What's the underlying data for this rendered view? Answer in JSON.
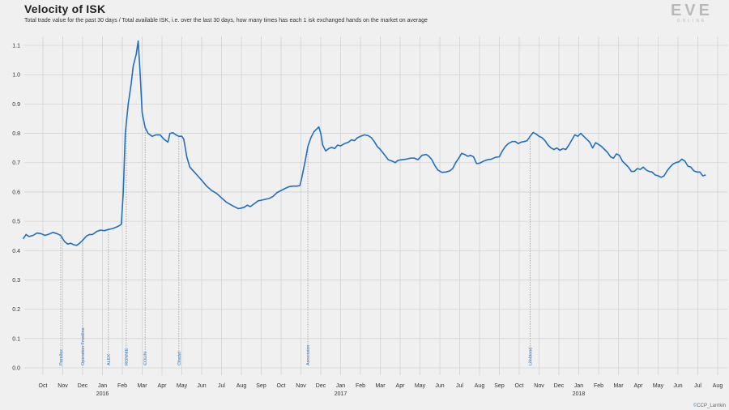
{
  "header": {
    "title": "Velocity of ISK",
    "subtitle": "Total trade value for the past 30 days / Total available ISK, i.e. over the last 30 days, how many times has each 1 isk exchanged hands on the market on average"
  },
  "logo": {
    "text": "EVE",
    "subtext": "ONLINE"
  },
  "credit": {
    "prefix": "©",
    "text": "CCP_Larrikin"
  },
  "colors": {
    "line": "#1f6fc2",
    "grid": "#d3d3d3",
    "axis_text": "#333333",
    "annotation_text": "#3f7fc4",
    "annotation_line": "#9a9a9a",
    "background": "#f0f0f0"
  },
  "chart_data": {
    "type": "line",
    "title": "Velocity of ISK",
    "ylim": [
      0,
      1.15
    ],
    "yticks": [
      0.0,
      0.1,
      0.2,
      0.3,
      0.4,
      0.5,
      0.6,
      0.7,
      0.8,
      0.9,
      1.0,
      1.1
    ],
    "ytick_labels": [
      "0.0",
      "0.1",
      "0.2",
      "0.3",
      "0.4",
      "0.5",
      "0.6",
      "0.7",
      "0.8",
      "0.9",
      "1.0",
      "1.1"
    ],
    "x_unit": "months since Oct 2015 (0 = Oct 2015)",
    "xlim": [
      -1,
      35.9
    ],
    "xticks": [
      {
        "x": 0,
        "label": "Oct"
      },
      {
        "x": 1,
        "label": "Nov"
      },
      {
        "x": 2,
        "label": "Dec"
      },
      {
        "x": 3,
        "label": "Jan",
        "year": "2016"
      },
      {
        "x": 4,
        "label": "Feb"
      },
      {
        "x": 5,
        "label": "Mar"
      },
      {
        "x": 6,
        "label": "Apr"
      },
      {
        "x": 7,
        "label": "May"
      },
      {
        "x": 8,
        "label": "Jun"
      },
      {
        "x": 9,
        "label": "Jul"
      },
      {
        "x": 10,
        "label": "Aug"
      },
      {
        "x": 11,
        "label": "Sep"
      },
      {
        "x": 12,
        "label": "Oct"
      },
      {
        "x": 13,
        "label": "Nov"
      },
      {
        "x": 14,
        "label": "Dec"
      },
      {
        "x": 15,
        "label": "Jan",
        "year": "2017"
      },
      {
        "x": 16,
        "label": "Feb"
      },
      {
        "x": 17,
        "label": "Mar"
      },
      {
        "x": 18,
        "label": "Apr"
      },
      {
        "x": 19,
        "label": "May"
      },
      {
        "x": 20,
        "label": "Jun"
      },
      {
        "x": 21,
        "label": "Jul"
      },
      {
        "x": 22,
        "label": "Aug"
      },
      {
        "x": 23,
        "label": "Sep"
      },
      {
        "x": 24,
        "label": "Oct"
      },
      {
        "x": 25,
        "label": "Nov"
      },
      {
        "x": 26,
        "label": "Dec"
      },
      {
        "x": 27,
        "label": "Jan",
        "year": "2018"
      },
      {
        "x": 28,
        "label": "Feb"
      },
      {
        "x": 29,
        "label": "Mar"
      },
      {
        "x": 30,
        "label": "Apr"
      },
      {
        "x": 31,
        "label": "May"
      },
      {
        "x": 32,
        "label": "Jun"
      },
      {
        "x": 33,
        "label": "Jul"
      },
      {
        "x": 34,
        "label": "Aug"
      }
    ],
    "grid": true,
    "series": [
      {
        "values": [
          [
            -1.0,
            0.44
          ],
          [
            -0.85,
            0.455
          ],
          [
            -0.7,
            0.448
          ],
          [
            -0.5,
            0.452
          ],
          [
            -0.3,
            0.46
          ],
          [
            -0.1,
            0.458
          ],
          [
            0.1,
            0.452
          ],
          [
            0.3,
            0.456
          ],
          [
            0.5,
            0.462
          ],
          [
            0.7,
            0.458
          ],
          [
            0.9,
            0.452
          ],
          [
            1.0,
            0.44
          ],
          [
            1.1,
            0.43
          ],
          [
            1.25,
            0.422
          ],
          [
            1.4,
            0.425
          ],
          [
            1.55,
            0.42
          ],
          [
            1.7,
            0.418
          ],
          [
            1.85,
            0.425
          ],
          [
            2.0,
            0.435
          ],
          [
            2.2,
            0.45
          ],
          [
            2.35,
            0.455
          ],
          [
            2.5,
            0.455
          ],
          [
            2.7,
            0.465
          ],
          [
            2.9,
            0.47
          ],
          [
            3.1,
            0.468
          ],
          [
            3.3,
            0.472
          ],
          [
            3.5,
            0.475
          ],
          [
            3.7,
            0.48
          ],
          [
            3.85,
            0.485
          ],
          [
            3.95,
            0.49
          ],
          [
            4.05,
            0.6
          ],
          [
            4.15,
            0.8
          ],
          [
            4.3,
            0.9
          ],
          [
            4.45,
            0.97
          ],
          [
            4.55,
            1.03
          ],
          [
            4.7,
            1.07
          ],
          [
            4.8,
            1.115
          ],
          [
            4.9,
            1.0
          ],
          [
            5.0,
            0.87
          ],
          [
            5.15,
            0.82
          ],
          [
            5.3,
            0.8
          ],
          [
            5.5,
            0.79
          ],
          [
            5.7,
            0.795
          ],
          [
            5.9,
            0.795
          ],
          [
            6.1,
            0.78
          ],
          [
            6.3,
            0.77
          ],
          [
            6.4,
            0.8
          ],
          [
            6.55,
            0.802
          ],
          [
            6.7,
            0.795
          ],
          [
            6.85,
            0.79
          ],
          [
            7.0,
            0.79
          ],
          [
            7.1,
            0.78
          ],
          [
            7.25,
            0.72
          ],
          [
            7.4,
            0.685
          ],
          [
            7.6,
            0.67
          ],
          [
            7.8,
            0.655
          ],
          [
            8.0,
            0.64
          ],
          [
            8.25,
            0.62
          ],
          [
            8.5,
            0.605
          ],
          [
            8.75,
            0.595
          ],
          [
            9.0,
            0.58
          ],
          [
            9.25,
            0.565
          ],
          [
            9.5,
            0.555
          ],
          [
            9.7,
            0.548
          ],
          [
            9.85,
            0.543
          ],
          [
            10.0,
            0.545
          ],
          [
            10.15,
            0.548
          ],
          [
            10.3,
            0.555
          ],
          [
            10.45,
            0.55
          ],
          [
            10.65,
            0.56
          ],
          [
            10.85,
            0.57
          ],
          [
            11.0,
            0.572
          ],
          [
            11.2,
            0.575
          ],
          [
            11.4,
            0.578
          ],
          [
            11.6,
            0.585
          ],
          [
            11.8,
            0.598
          ],
          [
            12.0,
            0.605
          ],
          [
            12.2,
            0.612
          ],
          [
            12.4,
            0.618
          ],
          [
            12.6,
            0.62
          ],
          [
            12.8,
            0.62
          ],
          [
            12.95,
            0.622
          ],
          [
            13.05,
            0.65
          ],
          [
            13.2,
            0.7
          ],
          [
            13.35,
            0.755
          ],
          [
            13.5,
            0.785
          ],
          [
            13.65,
            0.805
          ],
          [
            13.8,
            0.815
          ],
          [
            13.9,
            0.822
          ],
          [
            14.0,
            0.8
          ],
          [
            14.1,
            0.76
          ],
          [
            14.25,
            0.74
          ],
          [
            14.4,
            0.748
          ],
          [
            14.55,
            0.752
          ],
          [
            14.7,
            0.748
          ],
          [
            14.85,
            0.76
          ],
          [
            15.0,
            0.757
          ],
          [
            15.2,
            0.765
          ],
          [
            15.4,
            0.77
          ],
          [
            15.55,
            0.778
          ],
          [
            15.7,
            0.775
          ],
          [
            15.85,
            0.785
          ],
          [
            16.0,
            0.79
          ],
          [
            16.2,
            0.795
          ],
          [
            16.4,
            0.792
          ],
          [
            16.55,
            0.785
          ],
          [
            16.7,
            0.772
          ],
          [
            16.85,
            0.755
          ],
          [
            17.0,
            0.745
          ],
          [
            17.2,
            0.728
          ],
          [
            17.4,
            0.71
          ],
          [
            17.6,
            0.705
          ],
          [
            17.75,
            0.7
          ],
          [
            17.9,
            0.708
          ],
          [
            18.1,
            0.71
          ],
          [
            18.3,
            0.712
          ],
          [
            18.5,
            0.715
          ],
          [
            18.7,
            0.716
          ],
          [
            18.9,
            0.71
          ],
          [
            19.1,
            0.725
          ],
          [
            19.3,
            0.728
          ],
          [
            19.45,
            0.722
          ],
          [
            19.6,
            0.71
          ],
          [
            19.75,
            0.69
          ],
          [
            19.9,
            0.675
          ],
          [
            20.1,
            0.667
          ],
          [
            20.3,
            0.668
          ],
          [
            20.5,
            0.672
          ],
          [
            20.65,
            0.68
          ],
          [
            20.8,
            0.7
          ],
          [
            20.95,
            0.715
          ],
          [
            21.1,
            0.732
          ],
          [
            21.25,
            0.728
          ],
          [
            21.4,
            0.722
          ],
          [
            21.55,
            0.725
          ],
          [
            21.7,
            0.72
          ],
          [
            21.85,
            0.697
          ],
          [
            22.0,
            0.698
          ],
          [
            22.2,
            0.705
          ],
          [
            22.4,
            0.71
          ],
          [
            22.6,
            0.712
          ],
          [
            22.8,
            0.718
          ],
          [
            23.0,
            0.72
          ],
          [
            23.15,
            0.74
          ],
          [
            23.3,
            0.755
          ],
          [
            23.45,
            0.765
          ],
          [
            23.65,
            0.772
          ],
          [
            23.8,
            0.772
          ],
          [
            23.95,
            0.765
          ],
          [
            24.1,
            0.77
          ],
          [
            24.25,
            0.772
          ],
          [
            24.4,
            0.775
          ],
          [
            24.55,
            0.79
          ],
          [
            24.7,
            0.803
          ],
          [
            24.85,
            0.798
          ],
          [
            25.0,
            0.79
          ],
          [
            25.15,
            0.785
          ],
          [
            25.3,
            0.775
          ],
          [
            25.45,
            0.76
          ],
          [
            25.6,
            0.75
          ],
          [
            25.75,
            0.745
          ],
          [
            25.9,
            0.75
          ],
          [
            26.05,
            0.742
          ],
          [
            26.2,
            0.748
          ],
          [
            26.35,
            0.745
          ],
          [
            26.5,
            0.76
          ],
          [
            26.65,
            0.777
          ],
          [
            26.8,
            0.795
          ],
          [
            26.95,
            0.79
          ],
          [
            27.1,
            0.8
          ],
          [
            27.25,
            0.79
          ],
          [
            27.4,
            0.78
          ],
          [
            27.55,
            0.77
          ],
          [
            27.7,
            0.75
          ],
          [
            27.85,
            0.768
          ],
          [
            28.0,
            0.762
          ],
          [
            28.15,
            0.755
          ],
          [
            28.3,
            0.745
          ],
          [
            28.45,
            0.735
          ],
          [
            28.6,
            0.72
          ],
          [
            28.75,
            0.715
          ],
          [
            28.9,
            0.73
          ],
          [
            29.05,
            0.725
          ],
          [
            29.2,
            0.705
          ],
          [
            29.35,
            0.695
          ],
          [
            29.5,
            0.685
          ],
          [
            29.65,
            0.67
          ],
          [
            29.8,
            0.67
          ],
          [
            29.95,
            0.68
          ],
          [
            30.1,
            0.677
          ],
          [
            30.25,
            0.685
          ],
          [
            30.4,
            0.675
          ],
          [
            30.55,
            0.67
          ],
          [
            30.7,
            0.668
          ],
          [
            30.85,
            0.658
          ],
          [
            31.0,
            0.655
          ],
          [
            31.15,
            0.65
          ],
          [
            31.3,
            0.655
          ],
          [
            31.45,
            0.672
          ],
          [
            31.6,
            0.685
          ],
          [
            31.75,
            0.695
          ],
          [
            31.9,
            0.7
          ],
          [
            32.05,
            0.703
          ],
          [
            32.2,
            0.712
          ],
          [
            32.35,
            0.705
          ],
          [
            32.5,
            0.688
          ],
          [
            32.65,
            0.685
          ],
          [
            32.8,
            0.672
          ],
          [
            32.95,
            0.668
          ],
          [
            33.1,
            0.668
          ],
          [
            33.25,
            0.655
          ],
          [
            33.4,
            0.658
          ]
        ]
      }
    ],
    "annotations": [
      {
        "x": 0.9,
        "label": "Parallax"
      },
      {
        "x": 2.0,
        "label": "Operation Frostline"
      },
      {
        "x": 3.3,
        "label": "ALEX"
      },
      {
        "x": 4.2,
        "label": "RONNIE"
      },
      {
        "x": 5.15,
        "label": "COLIN"
      },
      {
        "x": 6.85,
        "label": "Citadel"
      },
      {
        "x": 13.35,
        "label": "Ascension"
      },
      {
        "x": 24.55,
        "label": "Lifeblood"
      }
    ]
  }
}
